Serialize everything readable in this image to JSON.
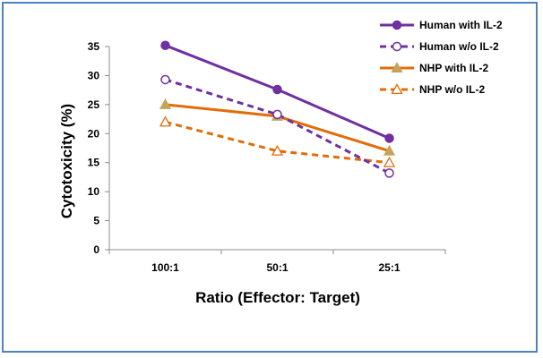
{
  "chart_data": {
    "type": "line",
    "categories": [
      "100:1",
      "50:1",
      "25:1"
    ],
    "xlabel": "Ratio (Effector: Target)",
    "ylabel": "Cytotoxicity (%)",
    "ylim": [
      0,
      35
    ],
    "yticks": [
      0,
      5,
      10,
      15,
      20,
      25,
      30,
      35
    ],
    "grid": false,
    "legend_position": "top-right",
    "series": [
      {
        "name": "Human with IL-2",
        "values": [
          35.2,
          27.6,
          19.2
        ],
        "color": "#7030a0",
        "dashed": false,
        "marker": "circle",
        "filled": true
      },
      {
        "name": "Human w/o IL-2",
        "values": [
          29.3,
          23.3,
          13.2
        ],
        "color": "#7030a0",
        "dashed": true,
        "marker": "circle",
        "filled": false
      },
      {
        "name": "NHP with IL-2",
        "values": [
          25.0,
          23.0,
          17.0
        ],
        "color": "#e36c09",
        "dashed": false,
        "marker": "triangle",
        "filled": true
      },
      {
        "name": "NHP w/o IL-2",
        "values": [
          22.0,
          17.0,
          15.0
        ],
        "color": "#e36c09",
        "dashed": true,
        "marker": "triangle",
        "filled": false
      }
    ]
  }
}
